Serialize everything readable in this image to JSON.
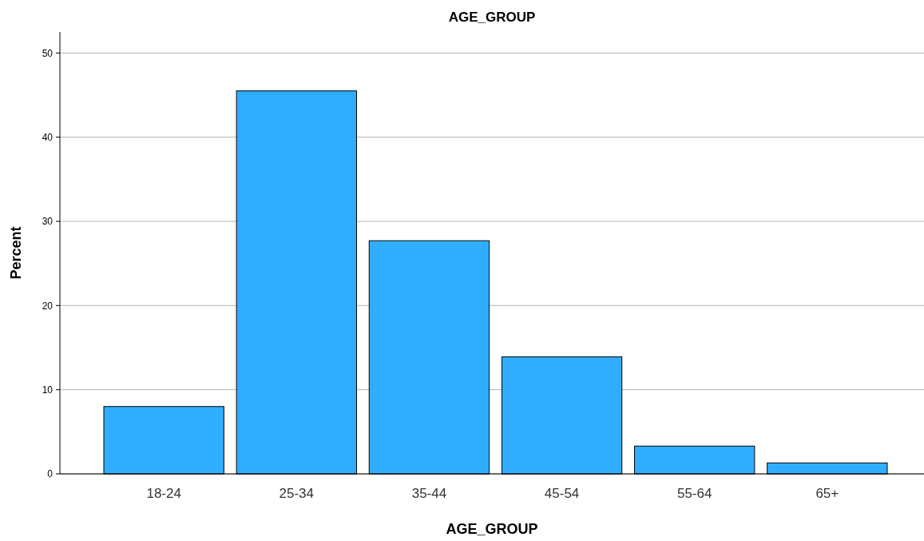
{
  "chart_data": {
    "type": "bar",
    "title": "AGE_GROUP",
    "xlabel": "AGE_GROUP",
    "ylabel": "Percent",
    "categories": [
      "18-24",
      "25-34",
      "35-44",
      "45-54",
      "55-64",
      "65+"
    ],
    "values": [
      8.0,
      45.5,
      27.7,
      13.9,
      3.3,
      1.3
    ],
    "color": "#31adff",
    "ylim": [
      0,
      52.5
    ],
    "yticks": [
      0,
      10,
      20,
      30,
      40,
      50
    ],
    "grid": "y"
  }
}
